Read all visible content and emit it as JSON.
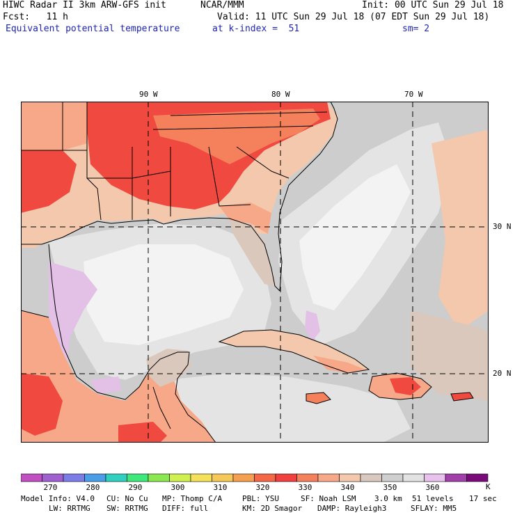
{
  "header": {
    "title": "HIWC Radar II 3km ARW-GFS init",
    "org": "NCAR/MMM",
    "init": "Init: 00 UTC Sun 29 Jul 18",
    "fcst": "Fcst:   11 h",
    "valid": "Valid: 11 UTC Sun 29 Jul 18 (07 EDT Sun 29 Jul 18)",
    "field": "Equivalent potential temperature",
    "level": "at k-index =  51",
    "smooth": "sm= 2"
  },
  "map": {
    "lon_labels": [
      "90 W",
      "80 W",
      "70 W"
    ],
    "lat_labels": [
      "30 N",
      "20 N"
    ],
    "colors": {
      "hot": "#f04a40",
      "warm": "#f4805c",
      "salmon": "#f6a888",
      "peach": "#f3c8ac",
      "tan": "#dac8bd",
      "gray": "#cdcdcd",
      "lightgray": "#e4e4e4",
      "whitish": "#f3f3f3",
      "lavender": "#e3c0e6"
    }
  },
  "colorbar": {
    "colors": [
      "#c14fc1",
      "#a060d0",
      "#7d7de8",
      "#4a9ee8",
      "#2fd0c0",
      "#3ee87a",
      "#8ce850",
      "#cff04f",
      "#f5e05a",
      "#f6c858",
      "#f5a050",
      "#f46848",
      "#f04040",
      "#f4805c",
      "#f6a888",
      "#f3c8ac",
      "#d8c8bf",
      "#cfcfcf",
      "#e2e2e2",
      "#e8c2ec",
      "#a040a8",
      "#7a0a7a"
    ],
    "labels": [
      "270",
      "280",
      "290",
      "300",
      "310",
      "320",
      "330",
      "340",
      "350",
      "360"
    ],
    "unit": "K"
  },
  "footer": {
    "line1": [
      "Model Info: V4.0",
      "CU: No Cu",
      "MP: Thomp C/A",
      "PBL: YSU",
      "SF: Noah LSM",
      "3.0 km",
      "51 levels",
      "17 sec"
    ],
    "line2": [
      "LW: RRTMG",
      "SW: RRTMG",
      "DIFF: full",
      "KM: 2D Smagor",
      "DAMP: Rayleigh3",
      "SFLAY: MM5"
    ]
  }
}
